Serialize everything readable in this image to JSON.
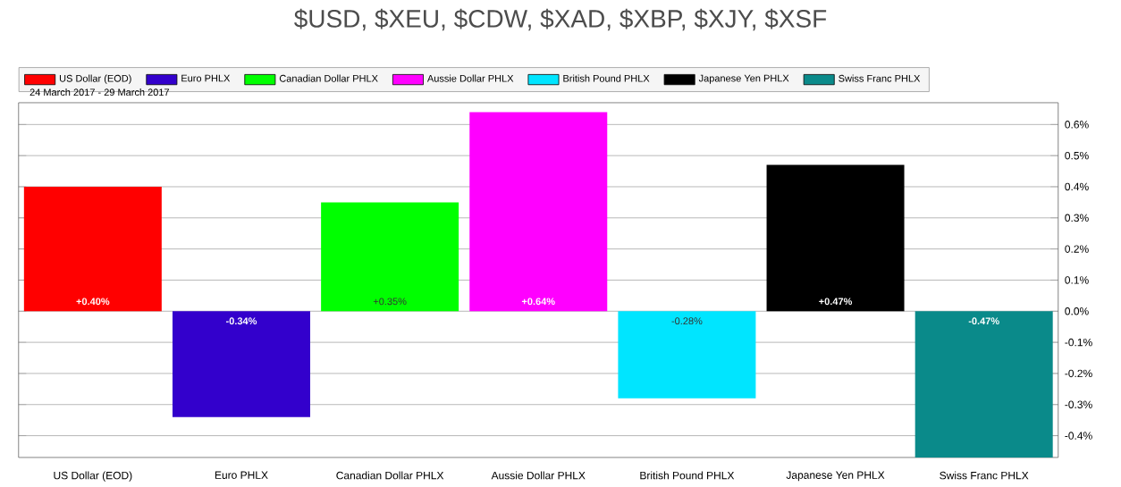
{
  "chart_data": {
    "type": "bar",
    "title": "$USD, $XEU, $CDW, $XAD, $XBP, $XJY, $XSF",
    "subtitle": "24 March 2017 - 29 March 2017",
    "categories": [
      "US Dollar (EOD)",
      "Euro PHLX",
      "Canadian Dollar PHLX",
      "Aussie Dollar PHLX",
      "British Pound PHLX",
      "Japanese Yen PHLX",
      "Swiss Franc PHLX"
    ],
    "series": [
      {
        "name": "US Dollar (EOD)",
        "color": "#ff0000",
        "values": [
          0.4,
          null,
          null,
          null,
          null,
          null,
          null
        ],
        "value_labels": [
          "+0.40%",
          null,
          null,
          null,
          null,
          null,
          null
        ]
      },
      {
        "name": "Euro PHLX",
        "color": "#3300cc",
        "values": [
          null,
          -0.34,
          null,
          null,
          null,
          null,
          null
        ],
        "value_labels": [
          null,
          "-0.34%",
          null,
          null,
          null,
          null,
          null
        ]
      },
      {
        "name": "Canadian Dollar PHLX",
        "color": "#00ff00",
        "values": [
          null,
          null,
          0.35,
          null,
          null,
          null,
          null
        ],
        "value_labels": [
          null,
          null,
          "+0.35%",
          null,
          null,
          null,
          null
        ]
      },
      {
        "name": "Aussie Dollar PHLX",
        "color": "#ff00ff",
        "values": [
          null,
          null,
          null,
          0.64,
          null,
          null,
          null
        ],
        "value_labels": [
          null,
          null,
          null,
          "+0.64%",
          null,
          null,
          null
        ]
      },
      {
        "name": "British Pound PHLX",
        "color": "#00e5ff",
        "values": [
          null,
          null,
          null,
          null,
          -0.28,
          null,
          null
        ],
        "value_labels": [
          null,
          null,
          null,
          null,
          "-0.28%",
          null,
          null
        ]
      },
      {
        "name": "Japanese Yen PHLX",
        "color": "#000000",
        "values": [
          null,
          null,
          null,
          null,
          null,
          0.47,
          null
        ],
        "value_labels": [
          null,
          null,
          null,
          null,
          null,
          "+0.47%",
          null
        ]
      },
      {
        "name": "Swiss Franc PHLX",
        "color": "#0a8a8a",
        "values": [
          null,
          null,
          null,
          null,
          null,
          null,
          -0.47
        ],
        "value_labels": [
          null,
          null,
          null,
          null,
          null,
          null,
          "-0.47%"
        ]
      }
    ],
    "ylim": [
      -0.47,
      0.67
    ],
    "yticks": [
      {
        "value": -0.4,
        "label": "-0.4%"
      },
      {
        "value": -0.3,
        "label": "-0.3%"
      },
      {
        "value": -0.2,
        "label": "-0.2%"
      },
      {
        "value": -0.1,
        "label": "-0.1%"
      },
      {
        "value": 0.0,
        "label": "0.0%"
      },
      {
        "value": 0.1,
        "label": "0.1%"
      },
      {
        "value": 0.2,
        "label": "0.2%"
      },
      {
        "value": 0.3,
        "label": "0.3%"
      },
      {
        "value": 0.4,
        "label": "0.4%"
      },
      {
        "value": 0.5,
        "label": "0.5%"
      },
      {
        "value": 0.6,
        "label": "0.6%"
      }
    ],
    "grid": "y",
    "legend": "top"
  }
}
